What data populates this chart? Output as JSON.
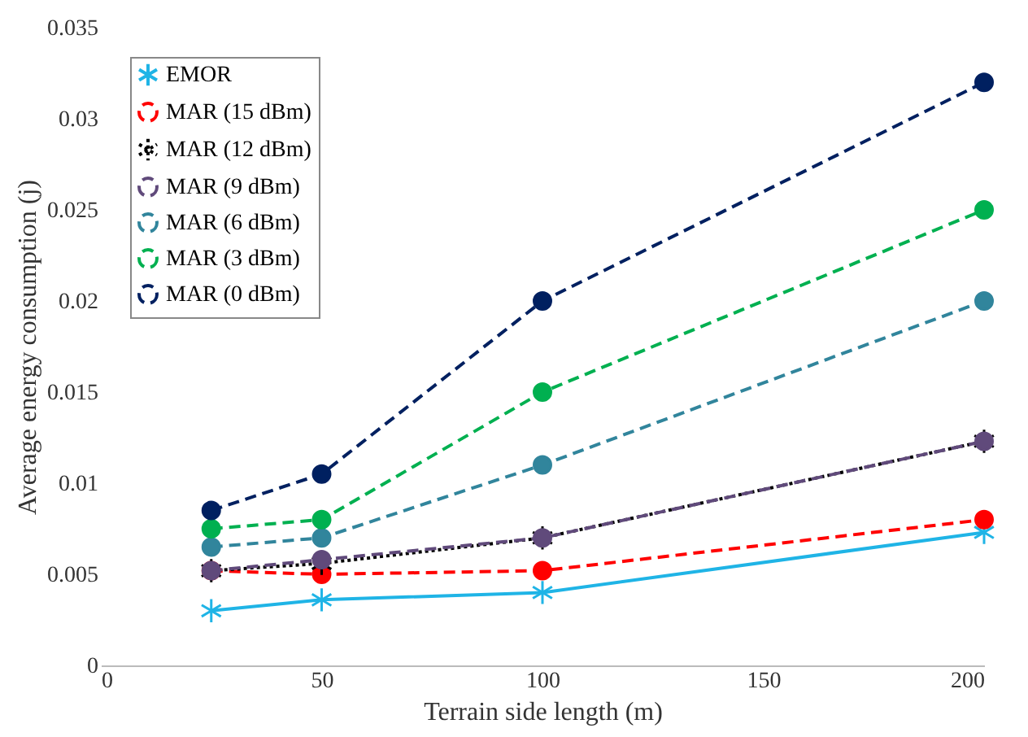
{
  "chart_data": {
    "type": "line",
    "xlabel": "Terrain side length (m)",
    "ylabel": "Average energy consumption (j)",
    "x": [
      25,
      50,
      100,
      200
    ],
    "xlim": [
      0,
      200
    ],
    "xticks": [
      0,
      50,
      100,
      150,
      200
    ],
    "ylim": [
      0,
      0.035
    ],
    "yticks": [
      0,
      0.005,
      0.01,
      0.015,
      0.02,
      0.025,
      0.03,
      0.035
    ],
    "grid": false,
    "legend": "top left",
    "series": [
      {
        "name": "EMOR",
        "color": "#1fb4e6",
        "marker": "cross",
        "line_style": "solid",
        "values": [
          0.003,
          0.0036,
          0.004,
          0.0073
        ]
      },
      {
        "name": "MAR (15 dBm)",
        "color": "#ff0000",
        "marker": "circle",
        "line_style": "dashed",
        "values": [
          0.0052,
          0.005,
          0.0052,
          0.008
        ]
      },
      {
        "name": "MAR (12 dBm)",
        "color": "#000000",
        "marker": "cross",
        "line_style": "dotted",
        "values": [
          0.0052,
          0.0056,
          0.007,
          0.0123
        ]
      },
      {
        "name": "MAR (9 dBm)",
        "color": "#604a7b",
        "marker": "circle",
        "line_style": "dashed",
        "values": [
          0.0052,
          0.0058,
          0.007,
          0.0123
        ]
      },
      {
        "name": "MAR (6 dBm)",
        "color": "#31859c",
        "marker": "circle",
        "line_style": "dashed",
        "values": [
          0.0065,
          0.007,
          0.011,
          0.02
        ]
      },
      {
        "name": "MAR (3 dBm)",
        "color": "#00b050",
        "marker": "circle",
        "line_style": "dashed",
        "values": [
          0.0075,
          0.008,
          0.015,
          0.025
        ]
      },
      {
        "name": "MAR (0 dBm)",
        "color": "#002060",
        "marker": "circle",
        "line_style": "dashed",
        "values": [
          0.0085,
          0.0105,
          0.02,
          0.032
        ]
      }
    ]
  }
}
